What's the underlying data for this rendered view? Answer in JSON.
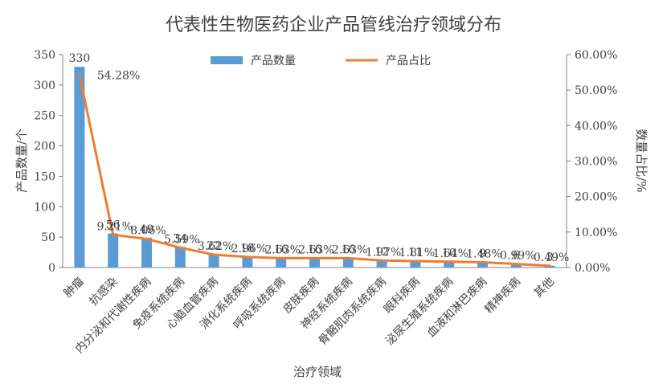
{
  "chart_data": {
    "type": "bar",
    "title": "代表性生物医药企业产品管线治疗领域分布",
    "xlabel": "治疗领域",
    "ylabel": "产品数量/个",
    "y2label": "数量占比/%",
    "categories": [
      "肿瘤",
      "抗感染",
      "内分泌和代谢性疾病",
      "免疫系统疾病",
      "心脑血管疾病",
      "消化系统疾病",
      "呼吸系统疾病",
      "皮肤疾病",
      "神经系统疾病",
      "骨骼肌肉系统疾病",
      "眼科疾病",
      "泌尿生殖系统疾病",
      "血液和淋巴疾病",
      "精神疾病",
      "其他"
    ],
    "series": [
      {
        "name": "产品数量",
        "type": "bar",
        "axis": "left",
        "color": "#5B9BD5",
        "values": [
          330,
          56,
          49,
          34,
          22,
          18,
          16,
          16,
          16,
          12,
          11,
          10,
          9,
          6,
          3
        ]
      },
      {
        "name": "产品占比",
        "type": "line",
        "axis": "right",
        "color": "#ED7D31",
        "values": [
          54.28,
          9.21,
          8.06,
          5.59,
          3.62,
          2.96,
          2.63,
          2.63,
          2.63,
          1.97,
          1.81,
          1.64,
          1.48,
          0.99,
          0.49
        ]
      }
    ],
    "bar_labels": [
      "330",
      "56",
      "49",
      "34",
      "22",
      "18",
      "16",
      "16",
      "16",
      "12",
      "11",
      "10",
      "9",
      "6",
      "3"
    ],
    "line_labels": [
      "54.28%",
      "9.21%",
      "8.06%",
      "5.59%",
      "3.62%",
      "2.96%",
      "2.63%",
      "2.63%",
      "2.63%",
      "1.97%",
      "1.81%",
      "1.64%",
      "1.48%",
      "0.99%",
      "0.49%"
    ],
    "ylim": [
      0,
      350
    ],
    "y2lim": [
      0,
      60
    ],
    "yticks": [
      "0",
      "50",
      "100",
      "150",
      "200",
      "250",
      "300",
      "350"
    ],
    "y2ticks": [
      "0.00%",
      "10.00%",
      "20.00%",
      "30.00%",
      "40.00%",
      "50.00%",
      "60.00%"
    ],
    "legend_position": "top-center",
    "grid": false
  }
}
